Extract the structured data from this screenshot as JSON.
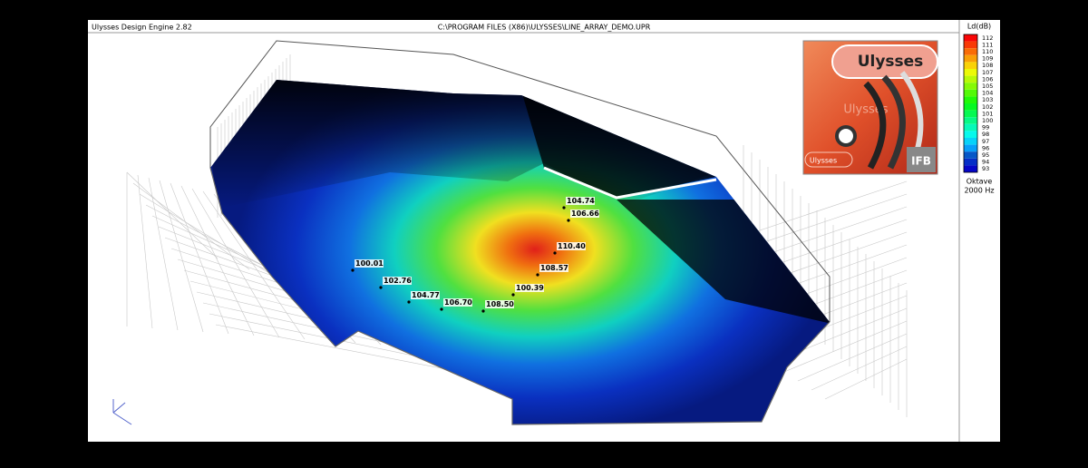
{
  "window": {
    "app_title": "Ulysses Design Engine 2.82",
    "file_path": "C:\\PROGRAM FILES (X86)\\ULYSSES\\LINE_ARRAY_DEMO.UPR"
  },
  "legend": {
    "title": "Ld(dB)",
    "levels": [
      "112",
      "111",
      "110",
      "109",
      "108",
      "107",
      "106",
      "105",
      "104",
      "103",
      "102",
      "101",
      "100",
      "99",
      "98",
      "97",
      "96",
      "95",
      "94",
      "93"
    ],
    "band": "Oktave",
    "frequency": "2000 Hz"
  },
  "logo": {
    "brand": "Ulysses",
    "watermark": "Ulysses",
    "caption": "Ulysses",
    "maker": "IFB"
  },
  "measurement_points": [
    "104.74",
    "106.66",
    "110.40",
    "108.57",
    "100.39",
    "108.50",
    "106.70",
    "104.77",
    "102.76",
    "100.01"
  ]
}
